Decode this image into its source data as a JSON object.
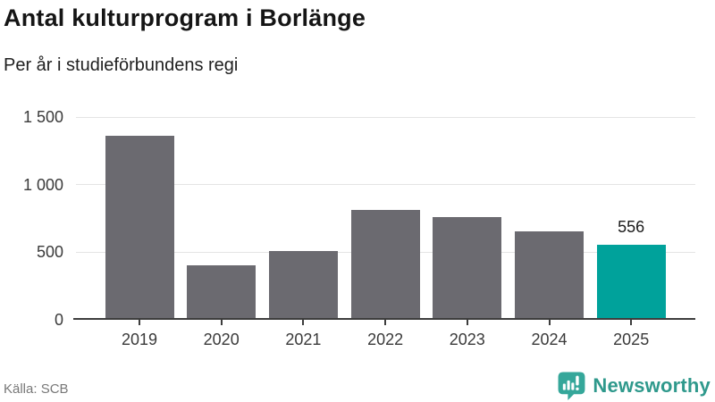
{
  "header": {
    "title": "Antal kulturprogram i Borlänge",
    "subtitle": "Per år i studieförbundens regi"
  },
  "chart_data": {
    "type": "bar",
    "title": "Antal kulturprogram i Borlänge",
    "subtitle": "Per år i studieförbundens regi",
    "categories": [
      "2019",
      "2020",
      "2021",
      "2022",
      "2023",
      "2024",
      "2025"
    ],
    "values": [
      1360,
      405,
      510,
      813,
      760,
      655,
      556
    ],
    "highlight_index": 6,
    "data_labels": [
      {
        "index": 6,
        "text": "556"
      }
    ],
    "ylim": [
      0,
      1500
    ],
    "yticks": [
      0,
      500,
      1000,
      1500
    ],
    "ytick_labels": [
      "0",
      "500",
      "1 000",
      "1 500"
    ],
    "grid": "horizontal",
    "legend": "none",
    "bar_color": "#6b6a70",
    "highlight_color": "#00a29b"
  },
  "footer": {
    "source": "Källa: SCB",
    "brand_name": "Newsworthy",
    "brand_text_color": "#2f998c",
    "brand_icon_color": "#35a79a"
  },
  "colors": {
    "background": "#ffffff",
    "axis": "#3d3d3d",
    "gridline": "#e4e4e4",
    "tick_label": "#3a3a3a",
    "source_text": "#787878"
  }
}
